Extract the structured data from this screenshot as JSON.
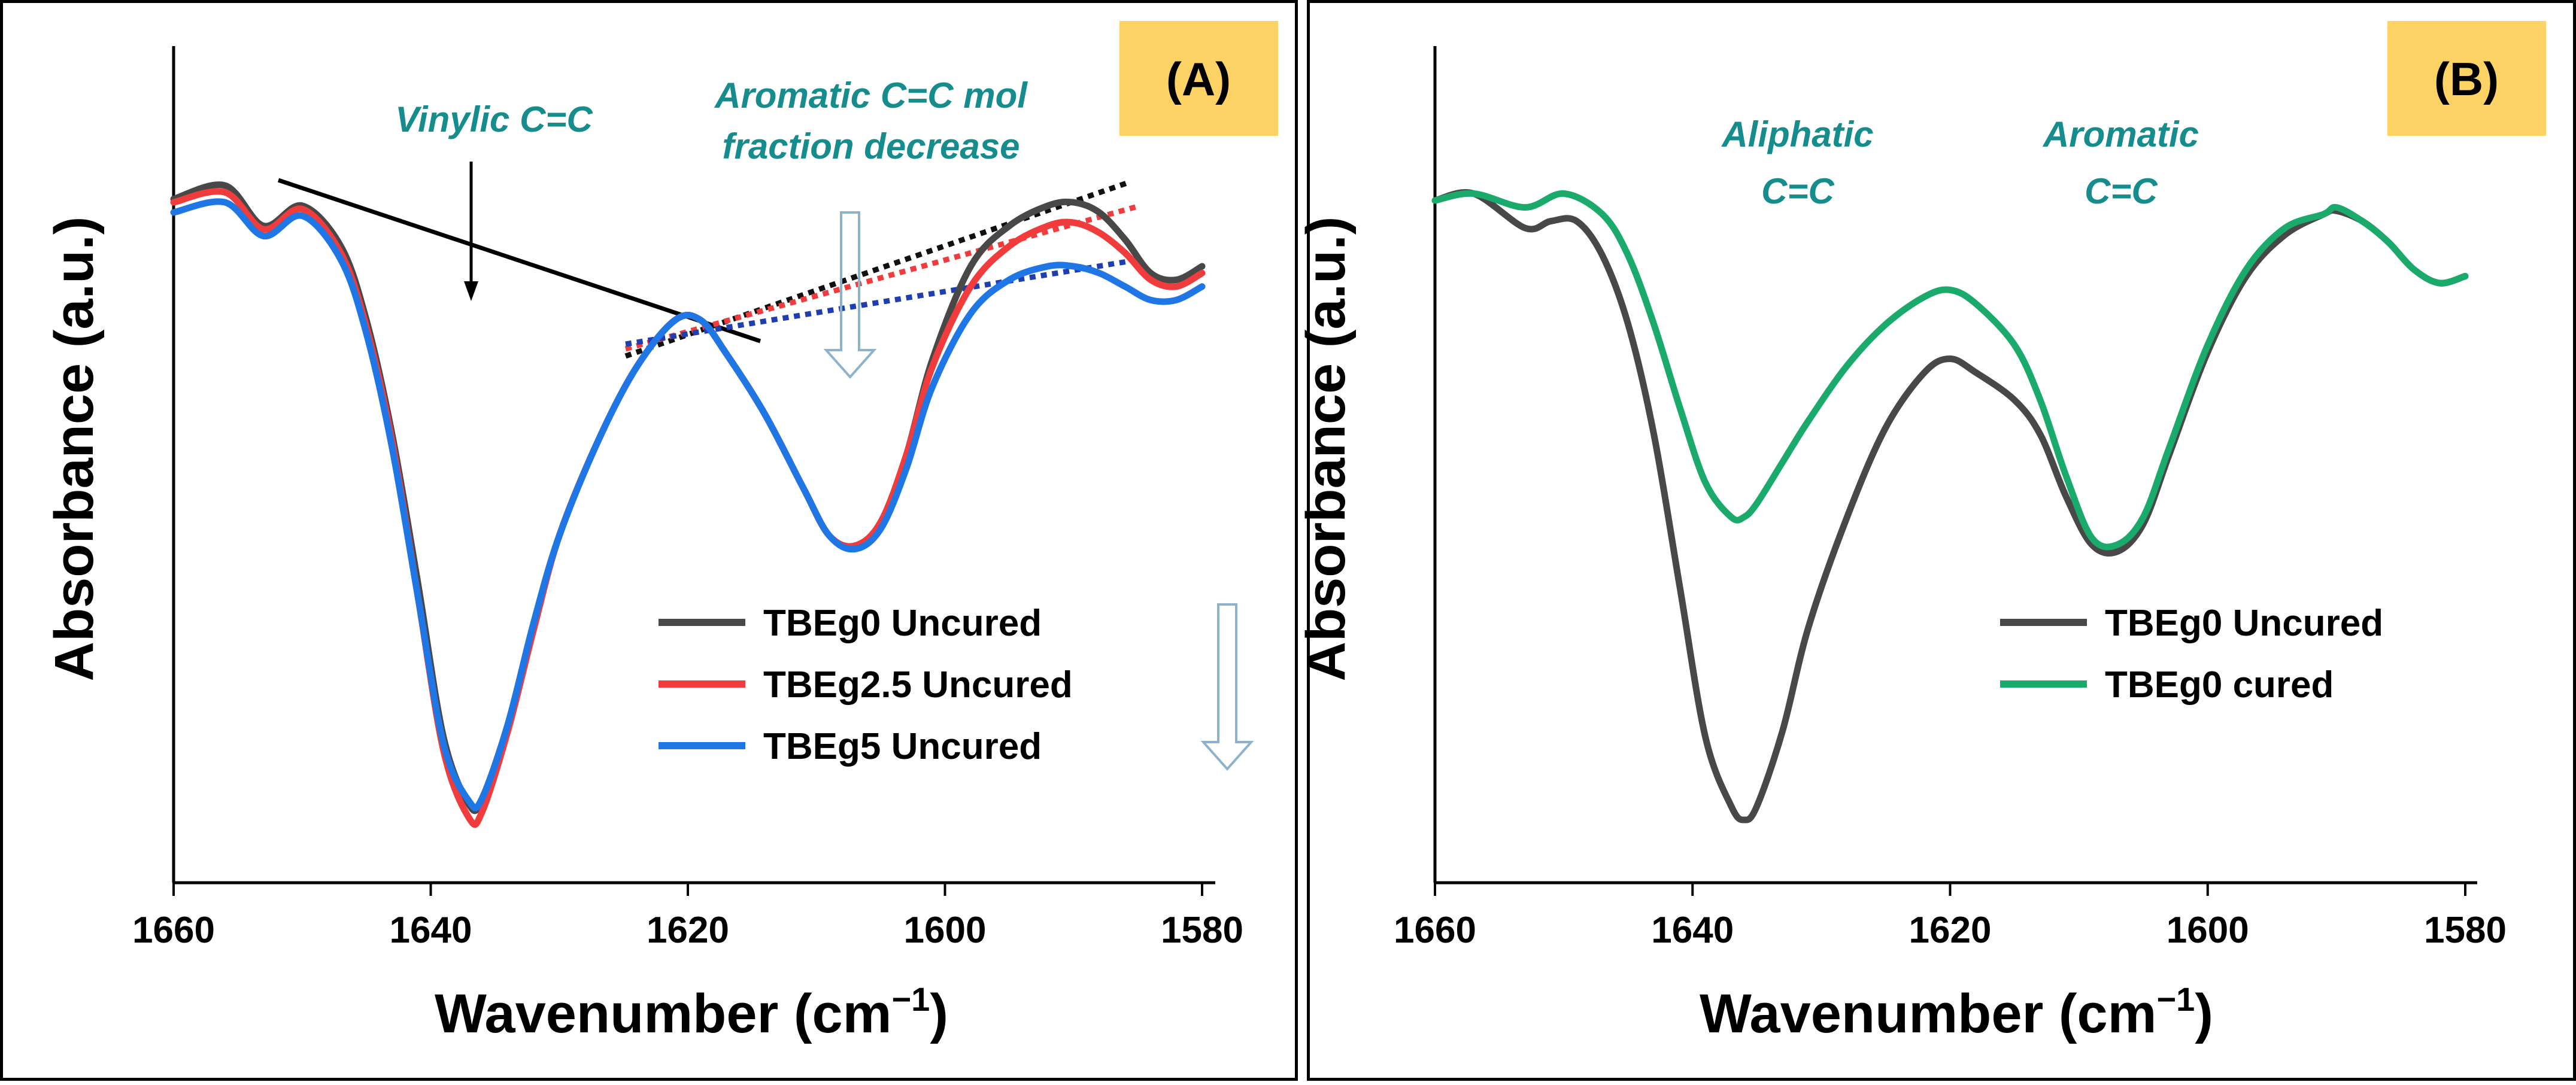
{
  "colors": {
    "tbeg0_uncured": "#484848",
    "tbeg2_5_uncured": "#f03c3c",
    "tbeg5_uncured": "#1f77e6",
    "tbeg0_cured": "#1aaa6c",
    "annotation": "#168c8c",
    "panel_tag_bg": "#fcd364",
    "hint_arrow": "#8fb2cc"
  },
  "chart_data": [
    {
      "panel": "A",
      "tag": "(A)",
      "type": "line",
      "xlabel": "Wavenumber (cm",
      "xlabel_sup": "−1",
      "xlabel_close": ")",
      "ylabel": "Absorbance (a.u.)",
      "xlim": [
        1660,
        1580
      ],
      "ylim": [
        0,
        1
      ],
      "x_ticks": [
        1660,
        1640,
        1620,
        1600,
        1580
      ],
      "annotations": {
        "vinylic": "Vinylic C=C",
        "aromatic_line1": "Aromatic C=C mol",
        "aromatic_line2": "fraction decrease"
      },
      "series": [
        {
          "name": "TBEg0 Uncured",
          "color": "#484848",
          "x": [
            1660,
            1656,
            1653,
            1650,
            1647,
            1645,
            1643,
            1641,
            1639,
            1637,
            1636,
            1634,
            1632,
            1630,
            1627,
            1624,
            1621,
            1619,
            1617,
            1614,
            1611,
            1609,
            1607,
            1605,
            1603,
            1601,
            1598,
            1595,
            1592,
            1590,
            1588,
            1586,
            1584,
            1582,
            1580
          ],
          "y": [
            0.9,
            0.92,
            0.86,
            0.89,
            0.83,
            0.72,
            0.55,
            0.33,
            0.1,
            0.0,
            0.01,
            0.12,
            0.27,
            0.4,
            0.54,
            0.65,
            0.72,
            0.72,
            0.67,
            0.58,
            0.47,
            0.4,
            0.385,
            0.42,
            0.52,
            0.66,
            0.8,
            0.86,
            0.89,
            0.895,
            0.88,
            0.84,
            0.79,
            0.78,
            0.8
          ]
        },
        {
          "name": "TBEg2.5 Uncured",
          "color": "#f03c3c",
          "x": [
            1660,
            1656,
            1653,
            1650,
            1647,
            1645,
            1643,
            1641,
            1639,
            1637,
            1636,
            1634,
            1632,
            1630,
            1627,
            1624,
            1621,
            1619,
            1617,
            1614,
            1611,
            1609,
            1607,
            1605,
            1603,
            1601,
            1598,
            1595,
            1592,
            1590,
            1588,
            1586,
            1584,
            1582,
            1580
          ],
          "y": [
            0.895,
            0.91,
            0.855,
            0.885,
            0.82,
            0.71,
            0.54,
            0.31,
            0.08,
            -0.02,
            -0.01,
            0.11,
            0.26,
            0.4,
            0.54,
            0.65,
            0.72,
            0.72,
            0.67,
            0.58,
            0.47,
            0.4,
            0.385,
            0.42,
            0.52,
            0.65,
            0.77,
            0.83,
            0.86,
            0.865,
            0.85,
            0.82,
            0.78,
            0.77,
            0.79
          ]
        },
        {
          "name": "TBEg5 Uncured",
          "color": "#1f77e6",
          "x": [
            1660,
            1656,
            1653,
            1650,
            1647,
            1645,
            1643,
            1641,
            1639,
            1637,
            1636,
            1634,
            1632,
            1630,
            1627,
            1624,
            1621,
            1619,
            1617,
            1614,
            1611,
            1609,
            1607,
            1605,
            1603,
            1601,
            1598,
            1595,
            1592,
            1590,
            1588,
            1586,
            1584,
            1582,
            1580
          ],
          "y": [
            0.88,
            0.895,
            0.845,
            0.875,
            0.81,
            0.7,
            0.53,
            0.31,
            0.09,
            0.005,
            0.01,
            0.12,
            0.27,
            0.4,
            0.54,
            0.65,
            0.72,
            0.72,
            0.67,
            0.58,
            0.47,
            0.4,
            0.38,
            0.41,
            0.5,
            0.62,
            0.73,
            0.78,
            0.8,
            0.8,
            0.79,
            0.77,
            0.75,
            0.75,
            0.77
          ]
        }
      ]
    },
    {
      "panel": "B",
      "tag": "(B)",
      "type": "line",
      "xlabel": "Wavenumber (cm",
      "xlabel_sup": "−1",
      "xlabel_close": ")",
      "ylabel": "Absorbance (a.u.)",
      "xlim": [
        1660,
        1580
      ],
      "ylim": [
        0,
        1
      ],
      "x_ticks": [
        1660,
        1640,
        1620,
        1600,
        1580
      ],
      "annotations": {
        "aliphatic_line1": "Aliphatic",
        "aliphatic_line2": "C=C",
        "aromatic_line1": "Aromatic",
        "aromatic_line2": "C=C"
      },
      "series": [
        {
          "name": "TBEg0 Uncured",
          "color": "#484848",
          "x": [
            1660,
            1657,
            1653,
            1651,
            1649,
            1647,
            1645,
            1643,
            1641,
            1639,
            1637,
            1636,
            1635,
            1633,
            1631,
            1628,
            1625,
            1622,
            1620,
            1618,
            1615,
            1613,
            1611,
            1609,
            1607,
            1605,
            1603,
            1600,
            1597,
            1594,
            1591,
            1590,
            1588,
            1586,
            1584,
            1582,
            1580
          ],
          "y": [
            0.9,
            0.91,
            0.86,
            0.87,
            0.87,
            0.82,
            0.72,
            0.56,
            0.34,
            0.12,
            0.02,
            0.0,
            0.02,
            0.13,
            0.28,
            0.44,
            0.57,
            0.65,
            0.67,
            0.65,
            0.61,
            0.56,
            0.47,
            0.4,
            0.39,
            0.43,
            0.53,
            0.68,
            0.79,
            0.85,
            0.88,
            0.885,
            0.87,
            0.84,
            0.8,
            0.78,
            0.79
          ]
        },
        {
          "name": "TBEg0 cured",
          "color": "#1aaa6c",
          "x": [
            1660,
            1657,
            1653,
            1650,
            1647,
            1645,
            1643,
            1641,
            1639,
            1637,
            1636,
            1635,
            1633,
            1631,
            1628,
            1625,
            1622,
            1620,
            1618,
            1615,
            1613,
            1611,
            1609,
            1607,
            1605,
            1603,
            1600,
            1597,
            1594,
            1591,
            1590,
            1588,
            1586,
            1584,
            1582,
            1580
          ],
          "y": [
            0.9,
            0.91,
            0.89,
            0.91,
            0.88,
            0.82,
            0.72,
            0.6,
            0.49,
            0.44,
            0.44,
            0.46,
            0.52,
            0.58,
            0.66,
            0.72,
            0.76,
            0.77,
            0.75,
            0.69,
            0.61,
            0.5,
            0.41,
            0.4,
            0.44,
            0.54,
            0.69,
            0.8,
            0.86,
            0.88,
            0.89,
            0.87,
            0.84,
            0.8,
            0.78,
            0.79
          ]
        }
      ]
    }
  ]
}
